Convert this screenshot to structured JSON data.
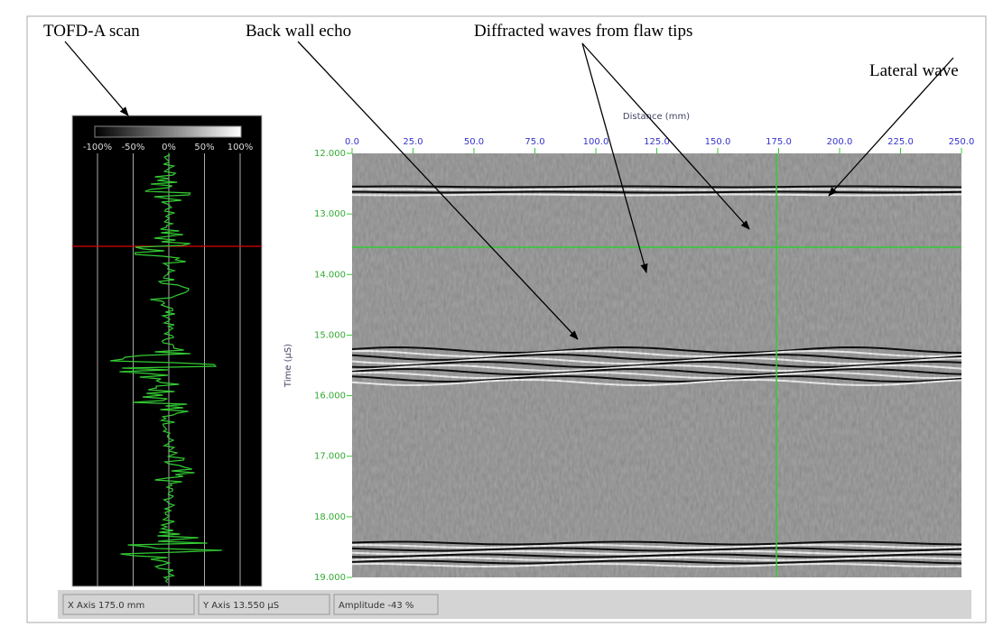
{
  "annotations": {
    "a_scan": "TOFD-A scan",
    "back_wall": "Back wall echo",
    "diffracted": "Diffracted waves from flaw tips",
    "lateral": "Lateral wave"
  },
  "a_scan_panel": {
    "scale_labels": [
      "-100%",
      "-50%",
      "0%",
      "50%",
      "100%"
    ]
  },
  "b_scan": {
    "x_title": "Distance (mm)",
    "y_title": "Time (µS)",
    "x_ticks": [
      "0.0",
      "25.0",
      "50.0",
      "75.0",
      "100.0",
      "125.0",
      "150.0",
      "175.0",
      "200.0",
      "225.0",
      "250.0"
    ],
    "y_ticks": [
      "12.000",
      "13.000",
      "14.000",
      "15.000",
      "16.000",
      "17.000",
      "18.000",
      "19.000"
    ]
  },
  "status_bar": {
    "x_axis": "X Axis  175.0 mm",
    "y_axis": "Y Axis  13.550 µS",
    "amplitude": "Amplitude  -43 %"
  }
}
